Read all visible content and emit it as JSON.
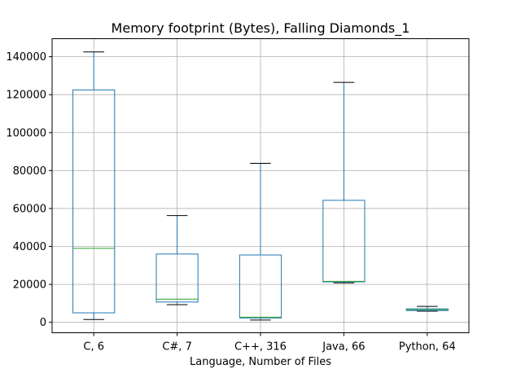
{
  "chart_data": {
    "type": "box",
    "title": "Memory footprint (Bytes), Falling Diamonds_1",
    "xlabel": "Language, Number of Files",
    "ylabel": "",
    "ylim": [
      -5500,
      149500
    ],
    "yticks": [
      0,
      20000,
      40000,
      60000,
      80000,
      100000,
      120000,
      140000
    ],
    "grid": true,
    "categories": [
      "C, 6",
      "C#, 7",
      "C++, 316",
      "Java, 66",
      "Python, 64"
    ],
    "boxes": [
      {
        "category": "C, 6",
        "whisker_low": 1500,
        "q1": 5000,
        "median": 39000,
        "q3": 122500,
        "whisker_high": 142500
      },
      {
        "category": "C#, 7",
        "whisker_low": 9300,
        "q1": 10700,
        "median": 12200,
        "q3": 36000,
        "whisker_high": 56300
      },
      {
        "category": "C++, 316",
        "whisker_low": 1200,
        "q1": 2300,
        "median": 2700,
        "q3": 35500,
        "whisker_high": 83800
      },
      {
        "category": "Java, 66",
        "whisker_low": 20800,
        "q1": 21300,
        "median": 21600,
        "q3": 64300,
        "whisker_high": 126500
      },
      {
        "category": "Python, 64",
        "whisker_low": 5900,
        "q1": 6200,
        "median": 6700,
        "q3": 7100,
        "whisker_high": 8400
      }
    ],
    "colors": {
      "box": "#1f77b4",
      "median": "#2ca02c",
      "whisker_cap": "#000000",
      "grid": "#b0b0b0"
    }
  }
}
